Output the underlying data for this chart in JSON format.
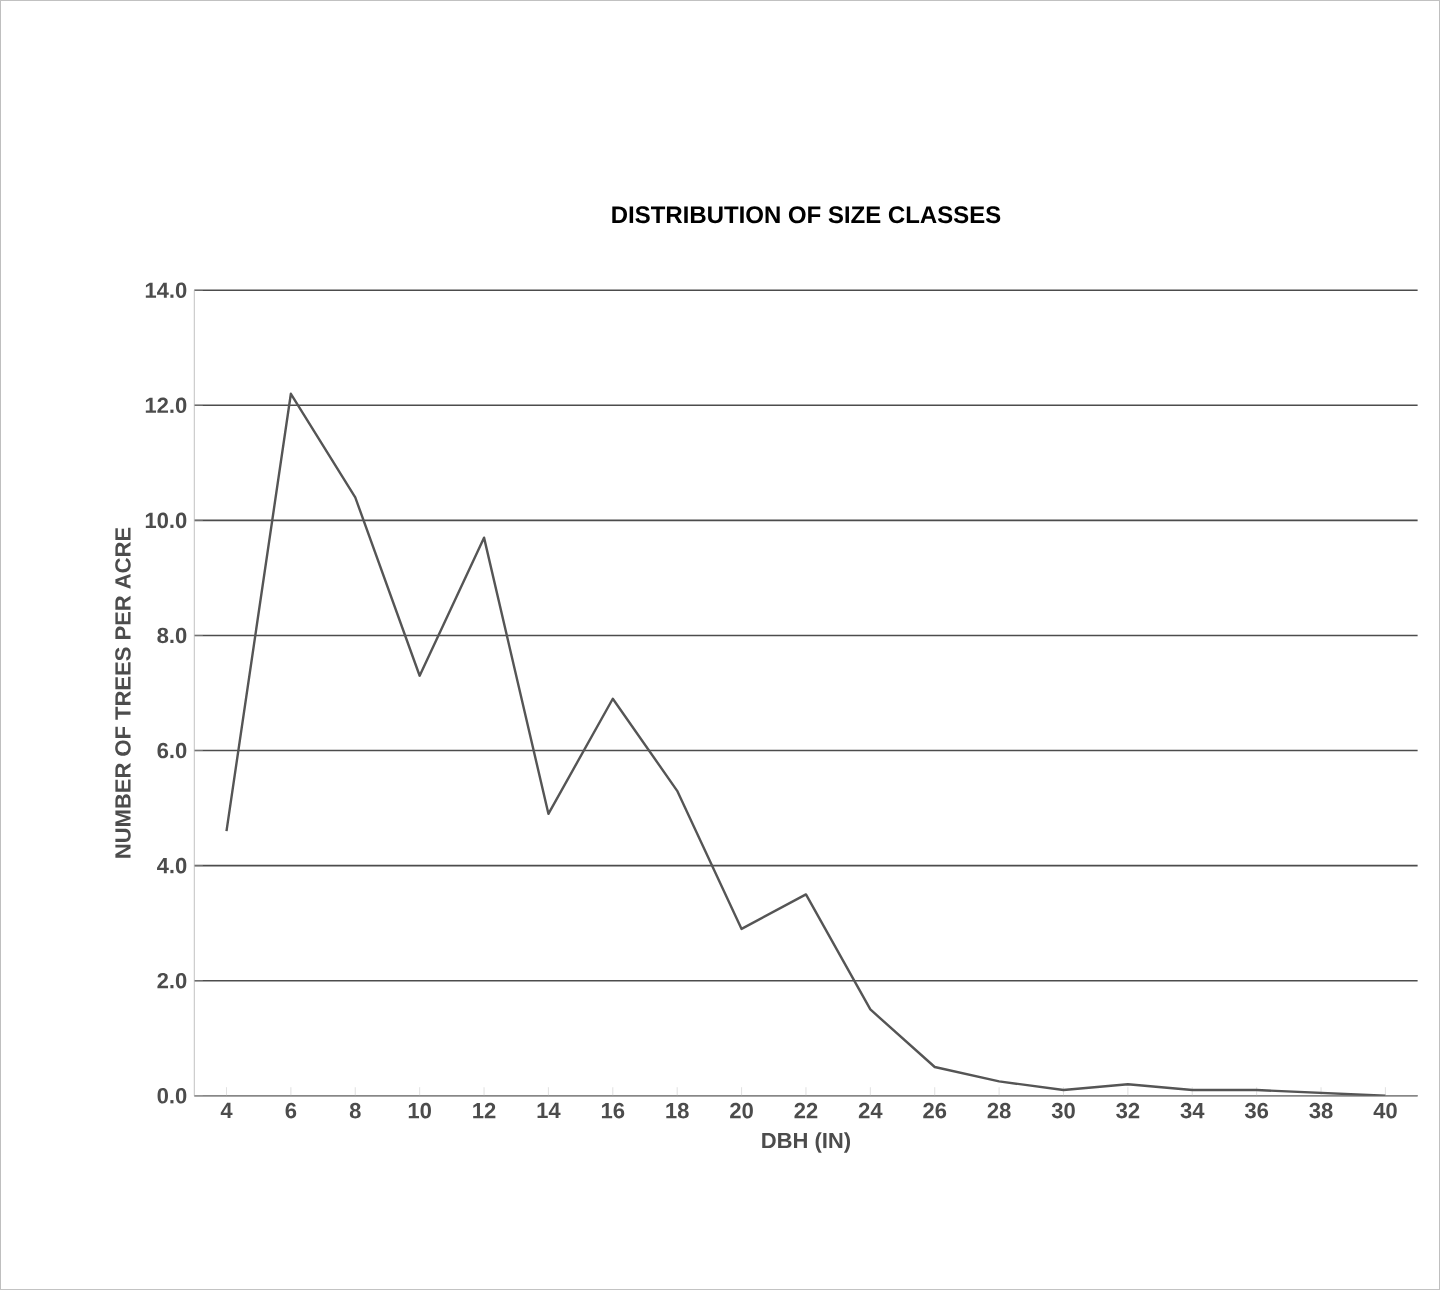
{
  "chart_data": {
    "type": "line",
    "title": "DISTRIBUTION OF SIZE CLASSES",
    "xlabel": "DBH (IN)",
    "ylabel": "NUMBER OF TREES PER ACRE",
    "categories": [
      "4",
      "6",
      "8",
      "10",
      "12",
      "14",
      "16",
      "18",
      "20",
      "22",
      "24",
      "26",
      "28",
      "30",
      "32",
      "34",
      "36",
      "38",
      "40"
    ],
    "series": [
      {
        "color": "#555555",
        "values": [
          4.6,
          12.2,
          10.4,
          7.3,
          9.7,
          4.9,
          6.9,
          5.3,
          2.9,
          3.5,
          1.5,
          0.5,
          0.25,
          0.1,
          0.2,
          0.1,
          0.1,
          0.05,
          0
        ]
      }
    ],
    "ylim": [
      0,
      14
    ],
    "yticks": [
      {
        "value": 0,
        "label": "0.0"
      },
      {
        "value": 2,
        "label": "2.0"
      },
      {
        "value": 4,
        "label": "4.0"
      },
      {
        "value": 6,
        "label": "6.0"
      },
      {
        "value": 8,
        "label": "8.0"
      },
      {
        "value": 10,
        "label": "10.0"
      },
      {
        "value": 12,
        "label": "12.0"
      },
      {
        "value": 14,
        "label": "14.0"
      }
    ],
    "grid": "y",
    "marker": "none",
    "line_style": "solid"
  }
}
